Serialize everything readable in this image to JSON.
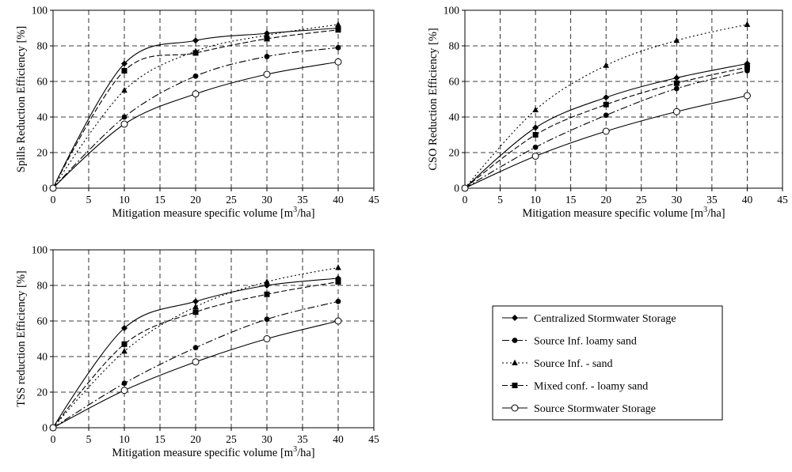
{
  "chart_data": [
    {
      "type": "line",
      "xlabel_pre": "Mitigation measure specific volume  [m",
      "xlabel_sup": "3",
      "xlabel_post": "/ha]",
      "ylabel": "Spills Reduction Efficiency [%]",
      "xlim": [
        0,
        45
      ],
      "ylim": [
        0,
        100
      ],
      "xticks": [
        0,
        5,
        10,
        15,
        20,
        25,
        30,
        35,
        40,
        45
      ],
      "yticks": [
        0,
        20,
        40,
        60,
        80,
        100
      ],
      "grid": true,
      "x": [
        0,
        10,
        20,
        30,
        40
      ],
      "series": [
        {
          "name": "Centralized Stormwater Storage",
          "values": [
            0,
            70,
            83,
            87,
            90
          ]
        },
        {
          "name": "Source Inf. loamy sand",
          "values": [
            0,
            40,
            63,
            74,
            79
          ]
        },
        {
          "name": "Source Inf. -  sand",
          "values": [
            0,
            55,
            77,
            86,
            92
          ]
        },
        {
          "name": "Mixed conf. - loamy sand",
          "values": [
            0,
            66,
            76,
            84,
            89
          ]
        },
        {
          "name": "Source Stormwater Storage",
          "values": [
            0,
            36,
            53,
            64,
            71
          ]
        }
      ]
    },
    {
      "type": "line",
      "xlabel_pre": "Mitigation measure specific volume  [m",
      "xlabel_sup": "3",
      "xlabel_post": "/ha]",
      "ylabel": "CSO Reduction Efficiency [%]",
      "xlim": [
        0,
        45
      ],
      "ylim": [
        0,
        100
      ],
      "xticks": [
        0,
        5,
        10,
        15,
        20,
        25,
        30,
        35,
        40,
        45
      ],
      "yticks": [
        0,
        20,
        40,
        60,
        80,
        100
      ],
      "grid": true,
      "x": [
        0,
        10,
        20,
        30,
        40
      ],
      "series": [
        {
          "name": "Centralized Stormwater Storage",
          "values": [
            0,
            34,
            51,
            62,
            70
          ]
        },
        {
          "name": "Source Inf. loamy sand",
          "values": [
            0,
            23,
            41,
            56,
            66
          ]
        },
        {
          "name": "Source Inf. -  sand",
          "values": [
            0,
            44,
            69,
            83,
            92
          ]
        },
        {
          "name": "Mixed conf. - loamy sand",
          "values": [
            0,
            30,
            47,
            59,
            68
          ]
        },
        {
          "name": "Source Stormwater Storage",
          "values": [
            0,
            18,
            32,
            43,
            52
          ]
        }
      ]
    },
    {
      "type": "line",
      "xlabel_pre": "Mitigation measure specific volume  [m",
      "xlabel_sup": "3",
      "xlabel_post": "/ha]",
      "ylabel": "TSS reduction Efficiency [%]",
      "xlim": [
        0,
        45
      ],
      "ylim": [
        0,
        100
      ],
      "xticks": [
        0,
        5,
        10,
        15,
        20,
        25,
        30,
        35,
        40,
        45
      ],
      "yticks": [
        0,
        20,
        40,
        60,
        80,
        100
      ],
      "grid": true,
      "x": [
        0,
        10,
        20,
        30,
        40
      ],
      "series": [
        {
          "name": "Centralized Stormwater Storage",
          "values": [
            0,
            56,
            71,
            80,
            84
          ]
        },
        {
          "name": "Source Inf. loamy sand",
          "values": [
            0,
            25,
            45,
            61,
            71
          ]
        },
        {
          "name": "Source Inf. -  sand",
          "values": [
            0,
            43,
            68,
            82,
            90
          ]
        },
        {
          "name": "Mixed conf. - loamy sand",
          "values": [
            0,
            47,
            65,
            75,
            82
          ]
        },
        {
          "name": "Source Stormwater Storage",
          "values": [
            0,
            21,
            37,
            50,
            60
          ]
        }
      ]
    }
  ],
  "legend": {
    "entries": [
      {
        "label": "Centralized Stormwater Storage",
        "dash": "solid",
        "marker": "diamond"
      },
      {
        "label": "Source Inf. loamy sand",
        "dash": "dashdot",
        "marker": "circle"
      },
      {
        "label": "Source Inf. -  sand",
        "dash": "dotted",
        "marker": "triangle"
      },
      {
        "label": "Mixed conf. - loamy sand",
        "dash": "dashed",
        "marker": "square"
      },
      {
        "label": "Source Stormwater Storage",
        "dash": "solid",
        "marker": "open-circle"
      }
    ]
  },
  "colors": {
    "line": "#000000",
    "grid": "#000000",
    "background": "#ffffff"
  }
}
